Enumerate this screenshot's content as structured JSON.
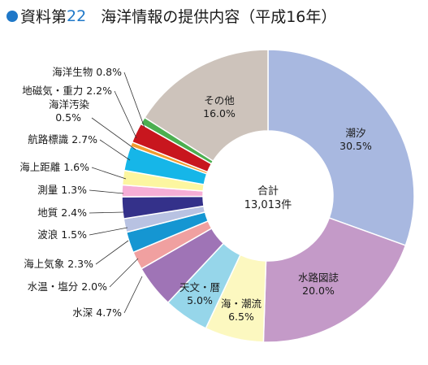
{
  "title": {
    "prefix": "資料第",
    "number": "22",
    "text": "海洋情報の提供内容（平成16年）"
  },
  "chart_data": {
    "type": "pie",
    "donut": true,
    "center_label": "合計",
    "center_value": "13,013件",
    "slices": [
      {
        "name": "潮汐",
        "value": 30.5,
        "value_label": "30.5%",
        "color": "#a8b8e0"
      },
      {
        "name": "水路図誌",
        "value": 20.0,
        "value_label": "20.0%",
        "color": "#c49ac8"
      },
      {
        "name": "海・潮流",
        "value": 6.5,
        "value_label": "6.5%",
        "color": "#fcf8c0"
      },
      {
        "name": "天文・暦",
        "value": 5.0,
        "value_label": "5.0%",
        "color": "#96d6ea"
      },
      {
        "name": "水深",
        "value": 4.7,
        "value_label": "4.7%",
        "color": "#9f74b6"
      },
      {
        "name": "水温・塩分",
        "value": 2.0,
        "value_label": "2.0%",
        "color": "#f0a0a0"
      },
      {
        "name": "海上気象",
        "value": 2.3,
        "value_label": "2.3%",
        "color": "#1596d2"
      },
      {
        "name": "波浪",
        "value": 1.5,
        "value_label": "1.5%",
        "color": "#b8c2e2"
      },
      {
        "name": "地質",
        "value": 2.4,
        "value_label": "2.4%",
        "color": "#34318a"
      },
      {
        "name": "測量",
        "value": 1.3,
        "value_label": "1.3%",
        "color": "#f6aed6"
      },
      {
        "name": "海上距離",
        "value": 1.6,
        "value_label": "1.6%",
        "color": "#fcf6a0"
      },
      {
        "name": "航路標識",
        "value": 2.7,
        "value_label": "2.7%",
        "color": "#16b6e8"
      },
      {
        "name": "海洋汚染",
        "value": 0.5,
        "value_label": "0.5%",
        "color": "#f29a2e"
      },
      {
        "name": "地磁気・重力",
        "value": 2.2,
        "value_label": "2.2%",
        "color": "#c8161e"
      },
      {
        "name": "海洋生物",
        "value": 0.8,
        "value_label": "0.8%",
        "color": "#4caf50"
      },
      {
        "name": "その他",
        "value": 16.0,
        "value_label": "16.0%",
        "color": "#cdc3bb"
      }
    ]
  }
}
